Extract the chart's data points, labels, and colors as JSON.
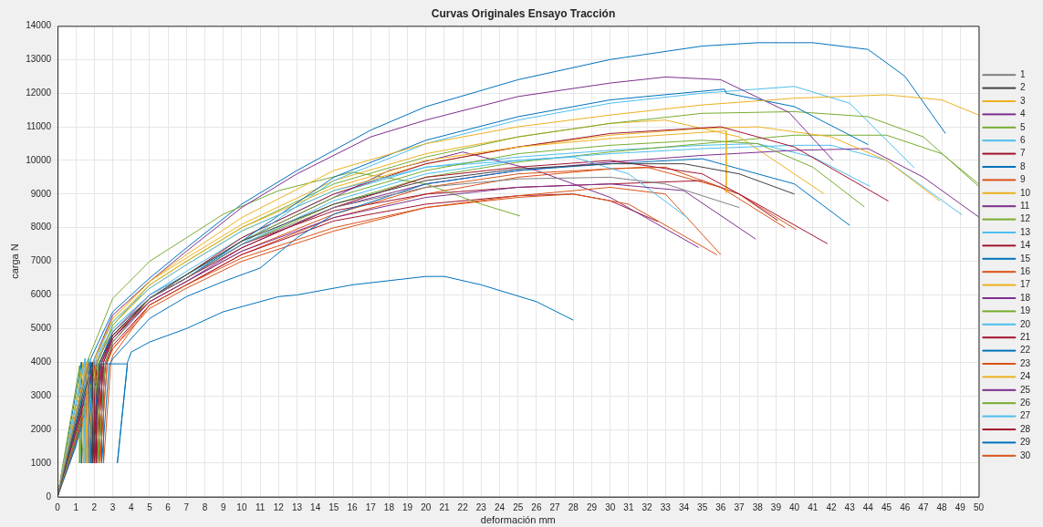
{
  "chart_data": {
    "type": "line",
    "title": "Curvas Originales Ensayo Tracción",
    "xlabel": "deformación mm",
    "ylabel": "carga N",
    "grid": true,
    "legend": "right",
    "marker": "none",
    "xlim": [
      0,
      50
    ],
    "xticks": [
      0,
      1,
      2,
      3,
      4,
      5,
      6,
      7,
      8,
      9,
      10,
      11,
      12,
      13,
      14,
      15,
      16,
      17,
      18,
      19,
      20,
      21,
      22,
      23,
      24,
      25,
      26,
      27,
      28,
      29,
      30,
      31,
      32,
      33,
      34,
      35,
      36,
      37,
      38,
      39,
      40,
      41,
      42,
      43,
      44,
      45,
      46,
      47,
      48,
      49,
      50
    ],
    "ylim": [
      0,
      14000
    ],
    "yticks": [
      0,
      1000,
      2000,
      3000,
      4000,
      5000,
      6000,
      7000,
      8000,
      9000,
      10000,
      11000,
      12000,
      13000,
      14000
    ],
    "series": [
      {
        "name": "1",
        "color": "#808080",
        "x": [
          0,
          1.7,
          1.7,
          2.1,
          3,
          5,
          7,
          10,
          15,
          20,
          25,
          30,
          33,
          37
        ],
        "values": [
          0,
          4000,
          1000,
          4000,
          4900,
          5900,
          6500,
          7500,
          8600,
          9200,
          9450,
          9500,
          9300,
          8600
        ]
      },
      {
        "name": "2",
        "color": "#404040",
        "x": [
          0,
          1.9,
          1.9,
          2.3,
          3,
          5,
          7,
          10,
          15,
          20,
          25,
          30,
          34,
          37,
          40
        ],
        "values": [
          0,
          4000,
          1000,
          4000,
          4800,
          5900,
          6600,
          7600,
          8700,
          9400,
          9750,
          9900,
          9900,
          9600,
          9000
        ]
      },
      {
        "name": "3",
        "color": "#edb120",
        "x": [
          0,
          1.6,
          1.6,
          2.1,
          3,
          5,
          7,
          10,
          15,
          20,
          25,
          30,
          35,
          40,
          45,
          48,
          50
        ],
        "values": [
          0,
          4000,
          1000,
          4200,
          5300,
          6400,
          7200,
          8300,
          9700,
          10500,
          11000,
          11350,
          11650,
          11850,
          11950,
          11800,
          11350
        ]
      },
      {
        "name": "4",
        "color": "#7e2f8e",
        "x": [
          0,
          1.9,
          1.9,
          2.4,
          3,
          5,
          7,
          10,
          15,
          20,
          25,
          30,
          34,
          37.9
        ],
        "values": [
          0,
          3800,
          1000,
          4000,
          4700,
          5800,
          6400,
          7300,
          8300,
          8900,
          9200,
          9300,
          9100,
          7660
        ]
      },
      {
        "name": "5",
        "color": "#77ac30",
        "x": [
          0,
          2.2,
          2.2,
          2.6,
          3,
          5,
          7,
          10,
          15,
          20,
          25,
          30,
          35,
          38,
          41,
          43.8
        ],
        "values": [
          0,
          4000,
          1000,
          4000,
          4600,
          5900,
          6600,
          7600,
          8900,
          9700,
          10200,
          10450,
          10600,
          10500,
          9800,
          8620
        ]
      },
      {
        "name": "6",
        "color": "#4dbeee",
        "x": [
          0,
          1.5,
          1.5,
          2,
          3,
          5,
          7,
          10,
          15,
          20,
          25,
          28,
          31,
          34.2
        ],
        "values": [
          0,
          4100,
          1000,
          4100,
          5200,
          6200,
          6900,
          7900,
          9100,
          9800,
          10000,
          10100,
          9600,
          8290
        ]
      },
      {
        "name": "7",
        "color": "#a2142f",
        "x": [
          0,
          2,
          2,
          2.4,
          3,
          5,
          7,
          10,
          15,
          20,
          25,
          30,
          35,
          38,
          41.8
        ],
        "values": [
          0,
          3900,
          1000,
          4000,
          4800,
          5900,
          6500,
          7400,
          8600,
          9500,
          9800,
          10000,
          9600,
          8700,
          7520
        ]
      },
      {
        "name": "8",
        "color": "#0072bd",
        "x": [
          0,
          1.8,
          1.8,
          2.3,
          3,
          5,
          7,
          10,
          15,
          20,
          25,
          30,
          36.2,
          36.3,
          40,
          44
        ],
        "values": [
          0,
          4000,
          1000,
          4000,
          4900,
          5900,
          6500,
          7600,
          9500,
          10600,
          11300,
          11800,
          12120,
          12000,
          11600,
          10470
        ]
      },
      {
        "name": "9",
        "color": "#d95319",
        "x": [
          0,
          2.3,
          2.3,
          2.7,
          3,
          5,
          7,
          10,
          15,
          20,
          25,
          28,
          31,
          35.8
        ],
        "values": [
          0,
          3900,
          1000,
          4000,
          4400,
          5700,
          6300,
          7100,
          8000,
          8600,
          8900,
          9000,
          8700,
          7190
        ]
      },
      {
        "name": "10",
        "color": "#edb120",
        "x": [
          0,
          1.4,
          1.4,
          1.9,
          3,
          5,
          7,
          10,
          15,
          20,
          25,
          30,
          36.3,
          36.3
        ],
        "values": [
          0,
          4000,
          1000,
          4000,
          5200,
          6300,
          7000,
          8000,
          9200,
          10000,
          10400,
          10650,
          10880,
          9040
        ]
      },
      {
        "name": "11",
        "color": "#7e2f8e",
        "x": [
          0,
          1.6,
          1.6,
          2,
          3,
          5,
          7,
          10,
          13,
          17,
          20,
          25,
          30,
          33,
          36,
          39.7,
          42.1
        ],
        "values": [
          0,
          4000,
          1000,
          4100,
          5400,
          6400,
          7300,
          8600,
          9600,
          10700,
          11200,
          11900,
          12300,
          12480,
          12400,
          11430,
          10000
        ]
      },
      {
        "name": "12",
        "color": "#77ac30",
        "x": [
          0,
          1.8,
          1.8,
          2.2,
          3,
          5,
          7,
          10,
          15,
          20,
          25,
          30,
          35,
          40,
          44,
          47,
          50
        ],
        "values": [
          0,
          4000,
          1000,
          4000,
          5100,
          6300,
          7000,
          8000,
          9300,
          10100,
          10700,
          11100,
          11400,
          11450,
          11300,
          10700,
          9230
        ]
      },
      {
        "name": "13",
        "color": "#4dbeee",
        "x": [
          0,
          1.5,
          1.5,
          2,
          3,
          5,
          7,
          10,
          15,
          20,
          25,
          30,
          35,
          40,
          43,
          46.5
        ],
        "values": [
          0,
          4100,
          1000,
          4100,
          5000,
          6000,
          6600,
          7500,
          9400,
          10500,
          11200,
          11700,
          12000,
          12200,
          11700,
          9780
        ]
      },
      {
        "name": "14",
        "color": "#a2142f",
        "x": [
          0,
          2.1,
          2.1,
          2.5,
          3,
          5,
          7,
          10,
          15,
          20,
          25,
          30,
          36,
          40,
          45.1
        ],
        "values": [
          0,
          3900,
          1000,
          4000,
          4700,
          5900,
          6600,
          7700,
          9000,
          9900,
          10400,
          10800,
          11000,
          10400,
          8790
        ]
      },
      {
        "name": "15",
        "color": "#0072bd",
        "x": [
          0,
          2.4,
          2.4,
          2.8,
          3,
          5,
          7,
          9,
          11,
          13,
          15,
          20,
          25,
          30,
          35,
          40,
          43
        ],
        "values": [
          0,
          3900,
          1000,
          3900,
          4100,
          5300,
          5950,
          6400,
          6800,
          7700,
          8400,
          9300,
          9700,
          9900,
          10050,
          9300,
          8070
        ]
      },
      {
        "name": "16",
        "color": "#d95319",
        "x": [
          0,
          2,
          2,
          2.4,
          3,
          5,
          7,
          10,
          15,
          20,
          25,
          30,
          33,
          37,
          40.1
        ],
        "values": [
          0,
          4000,
          1000,
          4000,
          4800,
          5800,
          6400,
          7300,
          8400,
          9200,
          9600,
          9750,
          9800,
          9000,
          7940
        ]
      },
      {
        "name": "17",
        "color": "#edb120",
        "x": [
          0,
          1.7,
          1.7,
          2.2,
          3,
          5,
          7,
          10,
          15,
          20,
          25,
          30,
          35,
          38,
          42,
          45,
          47.9
        ],
        "values": [
          0,
          4000,
          1000,
          4100,
          5100,
          6200,
          6900,
          7900,
          9100,
          9900,
          10400,
          10750,
          10950,
          11000,
          10700,
          10000,
          8790
        ]
      },
      {
        "name": "18",
        "color": "#7e2f8e",
        "x": [
          0,
          2.2,
          2.2,
          2.6,
          3,
          5,
          7,
          10,
          15,
          20,
          25,
          30,
          35,
          40,
          44,
          47,
          50
        ],
        "values": [
          0,
          3900,
          1000,
          4000,
          4600,
          5800,
          6400,
          7400,
          8600,
          9300,
          9700,
          9950,
          10150,
          10300,
          10350,
          9500,
          8320
        ]
      },
      {
        "name": "19",
        "color": "#77ac30",
        "x": [
          0,
          1.2,
          1.2,
          1.6,
          3,
          5,
          7,
          9,
          12,
          16,
          20,
          23,
          25.1
        ],
        "values": [
          0,
          3900,
          1000,
          4000,
          5900,
          7000,
          7700,
          8400,
          9100,
          9650,
          9300,
          8700,
          8350
        ]
      },
      {
        "name": "20",
        "color": "#4dbeee",
        "x": [
          0,
          1.8,
          1.8,
          2.3,
          3,
          5,
          7,
          10,
          15,
          20,
          25,
          30,
          35,
          40,
          42,
          45,
          49.1
        ],
        "values": [
          0,
          4000,
          1000,
          4000,
          4800,
          5900,
          6500,
          7500,
          8800,
          9600,
          10000,
          10200,
          10350,
          10450,
          10450,
          10000,
          8380
        ]
      },
      {
        "name": "21",
        "color": "#a2142f",
        "x": [
          0,
          2.1,
          2.1,
          2.5,
          3,
          5,
          7,
          10,
          15,
          20,
          25,
          30,
          35,
          37,
          39.1
        ],
        "values": [
          0,
          3900,
          1000,
          4000,
          4700,
          5900,
          6500,
          7500,
          8500,
          9000,
          9200,
          9300,
          9400,
          9000,
          8210
        ]
      },
      {
        "name": "22",
        "color": "#0072bd",
        "x": [
          0,
          1,
          2,
          2.4,
          3.8,
          3.25,
          3.8,
          4,
          5,
          7,
          9,
          12,
          13,
          16,
          20,
          21,
          23,
          26,
          28
        ],
        "values": [
          0,
          1500,
          3900,
          3950,
          3950,
          1000,
          4000,
          4300,
          4600,
          5000,
          5500,
          5950,
          6000,
          6300,
          6550,
          6550,
          6300,
          5800,
          5250
        ]
      },
      {
        "name": "23",
        "color": "#d95319",
        "x": [
          0,
          2.3,
          2.3,
          2.7,
          3,
          5,
          7,
          10,
          15,
          20,
          25,
          30,
          33,
          36
        ],
        "values": [
          0,
          3900,
          1000,
          4000,
          4400,
          5600,
          6200,
          7000,
          7900,
          8600,
          8950,
          9200,
          9000,
          7200
        ]
      },
      {
        "name": "24",
        "color": "#edb120",
        "x": [
          0,
          1.5,
          1.5,
          2,
          3,
          5,
          7,
          10,
          15,
          20,
          25,
          30,
          33,
          37,
          41.6
        ],
        "values": [
          0,
          4100,
          1000,
          4100,
          5300,
          6400,
          7100,
          8100,
          9400,
          10200,
          10700,
          11100,
          11200,
          10700,
          9010
        ]
      },
      {
        "name": "25",
        "color": "#7e2f8e",
        "x": [
          0,
          1.9,
          1.9,
          2.3,
          3,
          5,
          7,
          10,
          15,
          18,
          22,
          26,
          30,
          34.8
        ],
        "values": [
          0,
          4000,
          1000,
          4000,
          4900,
          6000,
          6600,
          7600,
          8900,
          9700,
          10250,
          9700,
          8900,
          7410
        ]
      },
      {
        "name": "26",
        "color": "#77ac30",
        "x": [
          0,
          2,
          2,
          2.4,
          3,
          5,
          7,
          10,
          15,
          20,
          25,
          30,
          35,
          40,
          45,
          48,
          50
        ],
        "values": [
          0,
          4000,
          1000,
          4000,
          4700,
          5900,
          6500,
          7500,
          8700,
          9500,
          9950,
          10250,
          10500,
          10750,
          10750,
          10200,
          9300
        ]
      },
      {
        "name": "27",
        "color": "#4dbeee",
        "x": [
          0,
          1.7,
          1.7,
          2.1,
          3,
          5,
          7,
          10,
          15,
          20,
          25,
          30,
          35,
          38,
          41,
          44.1
        ],
        "values": [
          0,
          4100,
          1000,
          4100,
          5000,
          6000,
          6700,
          7700,
          9000,
          9800,
          10100,
          10300,
          10450,
          10500,
          10100,
          9230
        ]
      },
      {
        "name": "28",
        "color": "#a2142f",
        "x": [
          0,
          2.2,
          2.2,
          2.6,
          3,
          5,
          7,
          10,
          15,
          20,
          25,
          28,
          30,
          32.6
        ],
        "values": [
          0,
          3900,
          1000,
          3900,
          4500,
          5700,
          6300,
          7200,
          8200,
          8700,
          8950,
          9000,
          8800,
          8180
        ]
      },
      {
        "name": "29",
        "color": "#0072bd",
        "x": [
          0,
          1.3,
          1.3,
          1.8,
          3,
          5,
          7,
          10,
          13,
          17,
          20,
          25,
          30,
          35,
          38,
          41,
          44,
          46,
          48.2
        ],
        "values": [
          0,
          4000,
          1000,
          4100,
          5500,
          6500,
          7400,
          8700,
          9700,
          10900,
          11600,
          12400,
          13000,
          13400,
          13500,
          13500,
          13300,
          12500,
          10800
        ]
      },
      {
        "name": "30",
        "color": "#d95319",
        "x": [
          0,
          2.5,
          2.5,
          2.9,
          3,
          5,
          7,
          10,
          15,
          20,
          25,
          30,
          32,
          36,
          39.5
        ],
        "values": [
          0,
          3900,
          1000,
          4000,
          4200,
          5700,
          6300,
          7200,
          8300,
          9000,
          9500,
          9750,
          9800,
          9200,
          8000
        ]
      }
    ]
  }
}
